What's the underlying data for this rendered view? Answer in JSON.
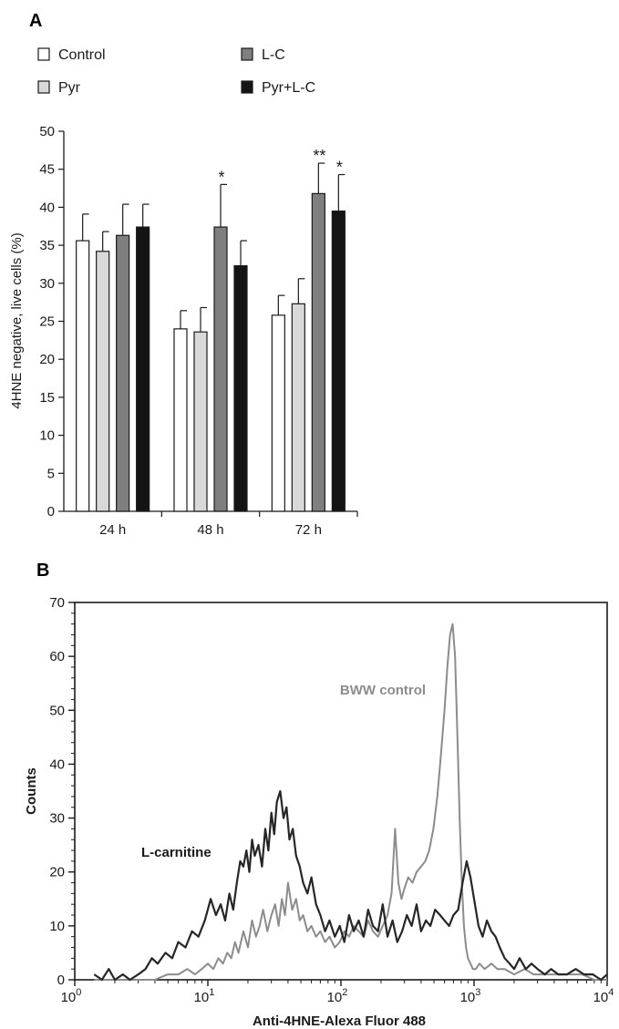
{
  "chart_data": [
    {
      "panel": "A",
      "type": "bar",
      "categories": [
        "24 h",
        "48 h",
        "72 h"
      ],
      "series": [
        {
          "name": "Control",
          "color": "#ffffff",
          "values": [
            35.6,
            24.0,
            25.8
          ],
          "errors": [
            3.5,
            2.4,
            2.6
          ]
        },
        {
          "name": "Pyr",
          "color": "#d9d9d9",
          "values": [
            34.2,
            23.6,
            27.3
          ],
          "errors": [
            2.6,
            3.2,
            3.3
          ]
        },
        {
          "name": "L-C",
          "color": "#7f7f7f",
          "values": [
            36.3,
            37.4,
            41.8
          ],
          "errors": [
            4.1,
            5.6,
            4.0
          ]
        },
        {
          "name": "Pyr+L-C",
          "color": "#141414",
          "values": [
            37.4,
            32.3,
            39.5
          ],
          "errors": [
            3.0,
            3.3,
            4.8
          ]
        }
      ],
      "significance": [
        {
          "category": "48 h",
          "series": "L-C",
          "label": "*"
        },
        {
          "category": "72 h",
          "series": "L-C",
          "label": "**"
        },
        {
          "category": "72 h",
          "series": "Pyr+L-C",
          "label": "*"
        }
      ],
      "ylabel": "4HNE negative, live cells (%)",
      "xlabel": "",
      "ylim": [
        0,
        50
      ],
      "yticks": [
        "0",
        "5",
        "10",
        "15",
        "20",
        "25",
        "30",
        "35",
        "40",
        "45",
        "50"
      ],
      "grid": false,
      "legend_position": "top-left"
    },
    {
      "panel": "B",
      "type": "line",
      "xscale": "log",
      "xlim": [
        1,
        10000
      ],
      "ylim": [
        0,
        70
      ],
      "xticks": [
        {
          "base": "10",
          "exp": "0"
        },
        {
          "base": "10",
          "exp": "1"
        },
        {
          "base": "10",
          "exp": "2"
        },
        {
          "base": "10",
          "exp": "3"
        },
        {
          "base": "10",
          "exp": "4"
        }
      ],
      "yticks": [
        "0",
        "10",
        "20",
        "30",
        "40",
        "50",
        "60",
        "70"
      ],
      "xlabel": "Anti-4HNE-Alexa Fluor 488",
      "ylabel": "Counts",
      "grid": false,
      "series": [
        {
          "name": "L-carnitine",
          "color": "#262626",
          "x": [
            1.4,
            1.6,
            1.8,
            2.0,
            2.3,
            2.6,
            3.0,
            3.4,
            3.8,
            4.2,
            4.8,
            5.4,
            6.0,
            6.8,
            7.6,
            8.5,
            9.5,
            10.5,
            11.5,
            12.5,
            13.5,
            14.5,
            15.5,
            16.5,
            17.5,
            18.5,
            19.5,
            20.5,
            21.5,
            22.5,
            24,
            25.5,
            27,
            28.5,
            30,
            31.5,
            33,
            35,
            37,
            39,
            41,
            43.5,
            46,
            49,
            52,
            56,
            60,
            65,
            70,
            76,
            82,
            90,
            98,
            106,
            115,
            125,
            136,
            148,
            160,
            174,
            190,
            206,
            224,
            244,
            265,
            288,
            313,
            340,
            370,
            400,
            435,
            470,
            510,
            555,
            600,
            650,
            700,
            760,
            820,
            880,
            940,
            1000,
            1080,
            1160,
            1250,
            1350,
            1450,
            1560,
            1700,
            1850,
            2000,
            2200,
            2450,
            2700,
            3000,
            3400,
            3800,
            4300,
            5000,
            5800,
            6700,
            7800,
            9000,
            10000
          ],
          "y": [
            1,
            0,
            2,
            0,
            1,
            0,
            1,
            2,
            4,
            3,
            5,
            4,
            7,
            6,
            9,
            8,
            11,
            15,
            12,
            14,
            11,
            16,
            13,
            18,
            22,
            21,
            24,
            20,
            26,
            23,
            25,
            21,
            28,
            24,
            31,
            27,
            33,
            35,
            30,
            32,
            26,
            28,
            23,
            21,
            18,
            16,
            19,
            14,
            12,
            9,
            11,
            8,
            10,
            7,
            12,
            9,
            11,
            8,
            13,
            10,
            9,
            14,
            8,
            11,
            7,
            9,
            12,
            10,
            14,
            9,
            11,
            10,
            13,
            12,
            11,
            10,
            12,
            13,
            18,
            22,
            19,
            15,
            10,
            8,
            11,
            9,
            8,
            6,
            4,
            3,
            2,
            4,
            2,
            3,
            2,
            1,
            2,
            1,
            1,
            2,
            1,
            1,
            0,
            1
          ]
        },
        {
          "name": "BWW control",
          "color": "#8c8c8c",
          "x": [
            1.4,
            2.0,
            3.0,
            4.0,
            5.0,
            6.0,
            7.0,
            8.0,
            9.0,
            10.0,
            11.0,
            12.0,
            13.0,
            14.0,
            15.0,
            16.0,
            17.0,
            18.5,
            20.0,
            21.5,
            23.0,
            24.5,
            26.0,
            28.0,
            30.0,
            32.0,
            34.0,
            36.0,
            38.0,
            40.0,
            43.0,
            46.0,
            49.0,
            52.0,
            56.0,
            60.0,
            65.0,
            70.0,
            76.0,
            82.0,
            90.0,
            98.0,
            106.0,
            115.0,
            125.0,
            136.0,
            148.0,
            160.0,
            174.0,
            190.0,
            206.0,
            224.0,
            240.0,
            255.0,
            270.0,
            285.0,
            300.0,
            320.0,
            345.0,
            370.0,
            400.0,
            430.0,
            460.0,
            495.0,
            530.0,
            565.0,
            600.0,
            630.0,
            660.0,
            690.0,
            720.0,
            750.0,
            780.0,
            810.0,
            840.0,
            870.0,
            900.0,
            940.0,
            980.0,
            1030.0,
            1100.0,
            1200.0,
            1350.0,
            1500.0,
            1700.0,
            2000.0,
            2400.0,
            2800.0,
            3300.0,
            4000.0,
            5000.0,
            6500.0,
            8000.0,
            10000.0
          ],
          "y": [
            0,
            0,
            0,
            0,
            1,
            1,
            2,
            1,
            2,
            3,
            2,
            4,
            3,
            5,
            4,
            7,
            5,
            9,
            6,
            11,
            8,
            10,
            13,
            9,
            12,
            14,
            10,
            15,
            12,
            18,
            13,
            15,
            11,
            12,
            9,
            10,
            8,
            9,
            7,
            8,
            6,
            7,
            9,
            8,
            10,
            9,
            8,
            11,
            9,
            8,
            10,
            12,
            16,
            28,
            18,
            15,
            17,
            19,
            18,
            20,
            21,
            22,
            24,
            28,
            34,
            42,
            50,
            58,
            64,
            66,
            60,
            45,
            30,
            18,
            10,
            6,
            4,
            3,
            2,
            2,
            3,
            2,
            3,
            2,
            2,
            1,
            2,
            1,
            1,
            1,
            1,
            1,
            0,
            0
          ]
        }
      ],
      "annotations": [
        {
          "text": "BWW control",
          "color": "#8c8c8c"
        },
        {
          "text": "L-carnitine",
          "color": "#1a1a1a"
        }
      ]
    }
  ]
}
